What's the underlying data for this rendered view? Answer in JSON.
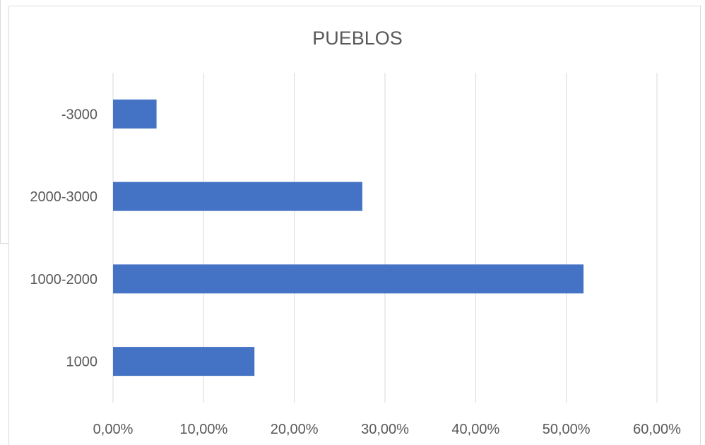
{
  "chart_data": {
    "type": "bar",
    "orientation": "horizontal",
    "title": "PUEBLOS",
    "categories": [
      "-3000",
      "2000-3000",
      "1000-2000",
      "1000"
    ],
    "values": [
      4.8,
      27.5,
      51.9,
      15.6
    ],
    "xlim": [
      0,
      60
    ],
    "x_ticks": [
      0,
      10,
      20,
      30,
      40,
      50,
      60
    ],
    "x_tick_labels": [
      "0,00%",
      "10,00%",
      "20,00%",
      "30,00%",
      "40,00%",
      "50,00%",
      "60,00%"
    ],
    "xlabel": "",
    "ylabel": "",
    "grid": "vertical",
    "legend": "none",
    "bar_color": "#4472C4",
    "grid_color": "#d9d9d9"
  }
}
